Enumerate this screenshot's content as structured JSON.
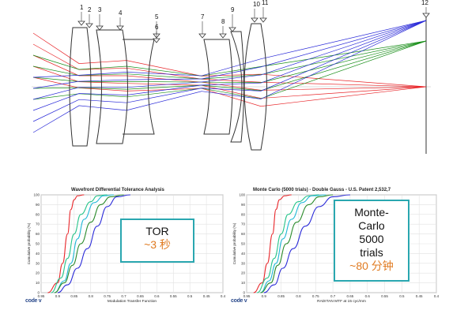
{
  "lens": {
    "surface_labels": [
      "1",
      "2",
      "3",
      "4",
      "5",
      "6",
      "7",
      "8",
      "9",
      "10",
      "11",
      "12"
    ],
    "colors": {
      "red": "#e8262a",
      "blue": "#2a2ad8",
      "green": "#1a8f1a"
    }
  },
  "chart_data": [
    {
      "type": "line",
      "title": "Wavefront Differential Tolerance Analysis",
      "xlabel": "Modulation Transfer Function",
      "ylabel": "Cumulative probability (%)",
      "x_ticks": [
        "0.95",
        "0.9",
        "0.85",
        "0.8",
        "0.75",
        "0.7",
        "0.65",
        "0.6",
        "0.55",
        "0.5",
        "0.45",
        "0.4"
      ],
      "y_ticks": [
        "100",
        "90",
        "80",
        "70",
        "60",
        "50",
        "40",
        "30",
        "20",
        "10",
        "0"
      ],
      "xlim": [
        0.95,
        0.4
      ],
      "ylim": [
        0,
        100
      ],
      "grid": true,
      "series": [
        {
          "color": "#e8262a",
          "x": [
            0.93,
            0.9,
            0.885,
            0.87,
            0.86,
            0.85,
            0.84,
            0.82
          ],
          "y": [
            0,
            10,
            30,
            60,
            85,
            95,
            99,
            100
          ]
        },
        {
          "color": "#27c48a",
          "x": [
            0.92,
            0.89,
            0.87,
            0.85,
            0.83,
            0.8,
            0.78,
            0.75
          ],
          "y": [
            0,
            15,
            35,
            60,
            80,
            93,
            99,
            100
          ]
        },
        {
          "color": "#22b8d6",
          "x": [
            0.91,
            0.88,
            0.86,
            0.84,
            0.82,
            0.79,
            0.76,
            0.73
          ],
          "y": [
            0,
            12,
            30,
            55,
            75,
            92,
            99,
            100
          ]
        },
        {
          "color": "#2a8a2a",
          "x": [
            0.91,
            0.88,
            0.855,
            0.83,
            0.8,
            0.77,
            0.74,
            0.7
          ],
          "y": [
            0,
            10,
            28,
            50,
            72,
            90,
            98,
            100
          ]
        },
        {
          "color": "#2a2ad8",
          "x": [
            0.9,
            0.87,
            0.84,
            0.81,
            0.78,
            0.75,
            0.72,
            0.68
          ],
          "y": [
            0,
            8,
            25,
            45,
            68,
            88,
            98,
            100
          ]
        }
      ],
      "annotation": {
        "main": "TOR",
        "sub": "~3 秒"
      },
      "logo": "code v"
    },
    {
      "type": "line",
      "title": "Monte Carlo (5000 trials)  -  Double Gauss - U.S. Patent 2,532,7",
      "xlabel": "RADITAN MTF at 15 cyc/mm",
      "ylabel": "Cumulative probability (%)",
      "x_ticks": [
        "0.95",
        "0.9",
        "0.85",
        "0.8",
        "0.75",
        "0.7",
        "0.65",
        "0.6",
        "0.55",
        "0.5",
        "0.45",
        "0.4"
      ],
      "y_ticks": [
        "100",
        "90",
        "80",
        "70",
        "60",
        "50",
        "40",
        "30",
        "20",
        "10",
        "0"
      ],
      "xlim": [
        0.95,
        0.4
      ],
      "ylim": [
        0,
        100
      ],
      "grid": true,
      "series": [
        {
          "color": "#e8262a",
          "x": [
            0.93,
            0.905,
            0.89,
            0.875,
            0.865,
            0.855,
            0.84,
            0.82
          ],
          "y": [
            0,
            10,
            30,
            60,
            85,
            95,
            99,
            100
          ]
        },
        {
          "color": "#27c48a",
          "x": [
            0.92,
            0.89,
            0.87,
            0.85,
            0.83,
            0.8,
            0.77,
            0.74
          ],
          "y": [
            0,
            15,
            35,
            60,
            80,
            93,
            99,
            100
          ]
        },
        {
          "color": "#22b8d6",
          "x": [
            0.91,
            0.885,
            0.865,
            0.845,
            0.82,
            0.79,
            0.76,
            0.72
          ],
          "y": [
            0,
            12,
            30,
            55,
            75,
            92,
            99,
            100
          ]
        },
        {
          "color": "#2a8a2a",
          "x": [
            0.91,
            0.88,
            0.86,
            0.835,
            0.805,
            0.77,
            0.74,
            0.7
          ],
          "y": [
            0,
            10,
            28,
            50,
            72,
            90,
            98,
            100
          ]
        },
        {
          "color": "#2a2ad8",
          "x": [
            0.9,
            0.87,
            0.845,
            0.815,
            0.78,
            0.74,
            0.7,
            0.65
          ],
          "y": [
            0,
            8,
            25,
            45,
            68,
            88,
            98,
            100
          ]
        }
      ],
      "annotation": {
        "lines": [
          "Monte-",
          "Carlo",
          "5000",
          "trials"
        ],
        "sub": "~80 分钟"
      },
      "logo": "code v"
    }
  ]
}
